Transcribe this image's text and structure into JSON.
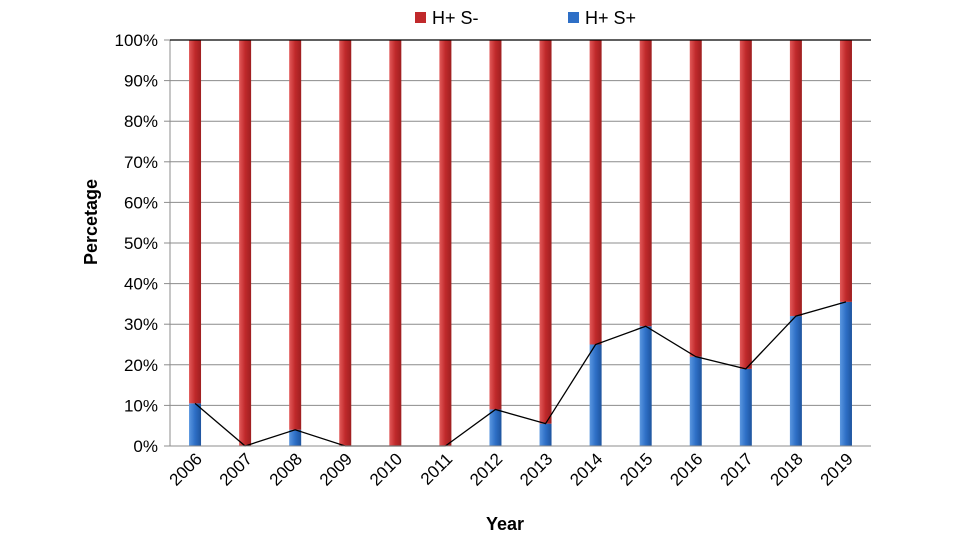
{
  "chart_data": {
    "type": "bar",
    "stacked": true,
    "normalized": true,
    "categories": [
      "2006",
      "2007",
      "2008",
      "2009",
      "2010",
      "2011",
      "2012",
      "2013",
      "2014",
      "2015",
      "2016",
      "2017",
      "2018",
      "2019"
    ],
    "series": [
      {
        "name": "H+ S-",
        "color": "#c0292b",
        "values": [
          89.5,
          100,
          96,
          100,
          100,
          100,
          91,
          94.5,
          75,
          70.5,
          78,
          81,
          68,
          64.5
        ]
      },
      {
        "name": "H+ S+",
        "color": "#2e6fc6",
        "values": [
          10.5,
          0,
          4,
          0,
          0,
          0,
          9,
          5.5,
          25,
          29.5,
          22,
          19,
          32,
          35.5
        ]
      }
    ],
    "trend_line": {
      "series": "H+ S+",
      "color": "#000000"
    },
    "xlabel": "Year",
    "ylabel": "Percetage",
    "ylim": [
      0,
      100
    ],
    "yticks": [
      "0%",
      "10%",
      "20%",
      "30%",
      "40%",
      "50%",
      "60%",
      "70%",
      "80%",
      "90%",
      "100%"
    ],
    "grid": true,
    "legend_position": "top-center"
  }
}
